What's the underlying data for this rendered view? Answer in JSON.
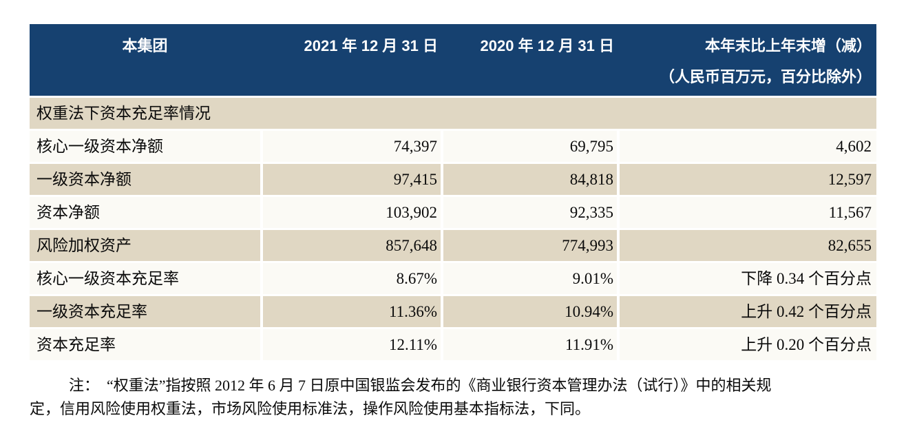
{
  "table": {
    "header": {
      "group_label": "本集团",
      "col_2021": "2021 年 12 月 31 日",
      "col_2020": "2020 年 12 月 31 日",
      "col_change": "本年末比上年末增（减）",
      "unit_note": "（人民币百万元，百分比除外）"
    },
    "section_title": "权重法下资本充足率情况",
    "rows": [
      {
        "label": "核心一级资本净额",
        "v2021": "74,397",
        "v2020": "69,795",
        "change": "4,602"
      },
      {
        "label": "一级资本净额",
        "v2021": "97,415",
        "v2020": "84,818",
        "change": "12,597"
      },
      {
        "label": "资本净额",
        "v2021": "103,902",
        "v2020": "92,335",
        "change": "11,567"
      },
      {
        "label": "风险加权资产",
        "v2021": "857,648",
        "v2020": "774,993",
        "change": "82,655"
      },
      {
        "label": "核心一级资本充足率",
        "v2021": "8.67%",
        "v2020": "9.01%",
        "change": "下降 0.34 个百分点"
      },
      {
        "label": "一级资本充足率",
        "v2021": "11.36%",
        "v2020": "10.94%",
        "change": "上升 0.42 个百分点"
      },
      {
        "label": "资本充足率",
        "v2021": "12.11%",
        "v2020": "11.91%",
        "change": "上升 0.20 个百分点"
      }
    ]
  },
  "note": {
    "line1": "注：　“权重法”指按照 2012 年 6 月 7 日原中国银监会发布的《商业银行资本管理办法（试行）》中的相关规",
    "line2": "定，信用风险使用权重法，市场风险使用标准法，操作风险使用基本指标法，下同。"
  },
  "colors": {
    "header_bg": "#164170",
    "row_tan": "#e0d7c3",
    "row_light": "#fbfaf5",
    "header_text": "#ffffff",
    "body_text": "#0a0a0a"
  }
}
